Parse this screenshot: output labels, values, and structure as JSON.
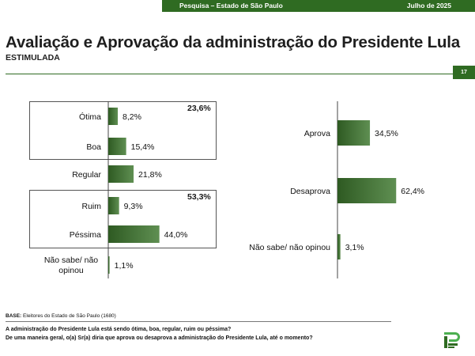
{
  "header": {
    "left_text": "Pesquisa – Estado de São Paulo",
    "right_text": "Julho de 2025"
  },
  "title": "Avaliação e Aprovação da administração do Presidente Lula",
  "subtitle": "ESTIMULADA",
  "page_number": "17",
  "colors": {
    "brand": "#2f6b22",
    "bar_dark": "#2e5a22",
    "bar_light": "#5f8f52"
  },
  "groups": {
    "positive_total": "23,6%",
    "negative_total": "53,3%"
  },
  "base": {
    "label": "BASE:",
    "text": " Eleitores do Estado de São Paulo (1680)"
  },
  "questions": [
    "A administração do Presidente Lula está sendo ótima, boa, regular, ruim ou péssima?",
    "De uma maneira geral, o(a) Sr(a) diria que aprova ou desaprova a administração do Presidente Lula, até o momento?"
  ],
  "chart_data": [
    {
      "type": "bar",
      "orientation": "horizontal",
      "categories": [
        "Ótima",
        "Boa",
        "Regular",
        "Ruim",
        "Péssima",
        "Não sabe/ não opinou"
      ],
      "values": [
        8.2,
        15.4,
        21.8,
        9.3,
        44.0,
        1.1
      ],
      "value_labels": [
        "8,2%",
        "15,4%",
        "21,8%",
        "9,3%",
        "44,0%",
        "1,1%"
      ],
      "unit": "%"
    },
    {
      "type": "bar",
      "orientation": "horizontal",
      "categories": [
        "Aprova",
        "Desaprova",
        "Não sabe/ não opinou"
      ],
      "values": [
        34.5,
        62.4,
        3.1
      ],
      "value_labels": [
        "34,5%",
        "62,4%",
        "3,1%"
      ],
      "unit": "%"
    }
  ]
}
